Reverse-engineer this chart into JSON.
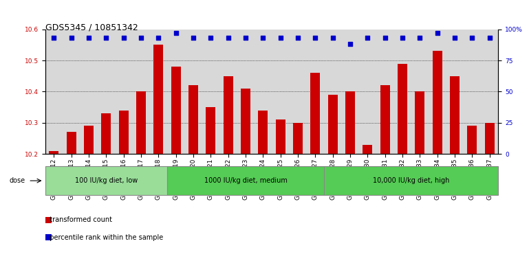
{
  "title": "GDS5345 / 10851342",
  "categories": [
    "GSM1502412",
    "GSM1502413",
    "GSM1502414",
    "GSM1502415",
    "GSM1502416",
    "GSM1502417",
    "GSM1502418",
    "GSM1502419",
    "GSM1502420",
    "GSM1502421",
    "GSM1502422",
    "GSM1502423",
    "GSM1502424",
    "GSM1502425",
    "GSM1502426",
    "GSM1502427",
    "GSM1502428",
    "GSM1502429",
    "GSM1502430",
    "GSM1502431",
    "GSM1502432",
    "GSM1502433",
    "GSM1502434",
    "GSM1502435",
    "GSM1502436",
    "GSM1502437"
  ],
  "bar_values": [
    10.21,
    10.27,
    10.29,
    10.33,
    10.34,
    10.4,
    10.55,
    10.48,
    10.42,
    10.35,
    10.45,
    10.41,
    10.34,
    10.31,
    10.3,
    10.46,
    10.39,
    10.4,
    10.23,
    10.42,
    10.49,
    10.4,
    10.53,
    10.45,
    10.29,
    10.3
  ],
  "percentile_values": [
    93,
    93,
    93,
    93,
    93,
    93,
    93,
    97,
    93,
    93,
    93,
    93,
    93,
    93,
    93,
    93,
    93,
    88,
    93,
    93,
    93,
    93,
    97,
    93,
    93,
    93
  ],
  "bar_color": "#cc0000",
  "percentile_color": "#0000cc",
  "ylim_left": [
    10.2,
    10.6
  ],
  "ylim_right": [
    0,
    100
  ],
  "yticks_left": [
    10.2,
    10.3,
    10.4,
    10.5,
    10.6
  ],
  "yticks_right": [
    0,
    25,
    50,
    75,
    100
  ],
  "ytick_labels_right": [
    "0",
    "25",
    "50",
    "75",
    "100%"
  ],
  "group_defs": [
    {
      "label": "100 IU/kg diet, low",
      "xstart": 0,
      "xend": 6,
      "color": "#99dd99"
    },
    {
      "label": "1000 IU/kg diet, medium",
      "xstart": 7,
      "xend": 15,
      "color": "#55cc55"
    },
    {
      "label": "10,000 IU/kg diet, high",
      "xstart": 16,
      "xend": 25,
      "color": "#55cc55"
    }
  ],
  "axis_bg_color": "#d8d8d8",
  "title_fontsize": 9,
  "tick_fontsize": 6.5,
  "bar_width": 0.55,
  "perc_marker_size": 18
}
